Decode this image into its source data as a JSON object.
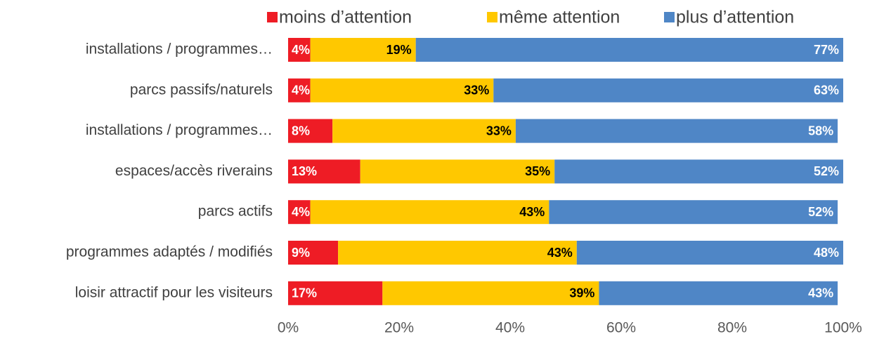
{
  "chart_data": {
    "type": "stacked_barh",
    "categories": [
      "installations / programmes…",
      "parcs passifs/naturels",
      "installations / programmes…",
      "espaces/accès riverains",
      "parcs actifs",
      "programmes adaptés / modifiés",
      "loisir attractif pour les visiteurs"
    ],
    "series": [
      {
        "name": "moins d’attention",
        "color": "#ee1c25",
        "values": [
          4,
          4,
          8,
          13,
          4,
          9,
          17
        ],
        "value_labels": [
          "4%",
          "4%",
          "8%",
          "13%",
          "4%",
          "9%",
          "17%"
        ]
      },
      {
        "name": "même attention",
        "color": "#ffc800",
        "values": [
          19,
          33,
          33,
          35,
          43,
          43,
          39
        ],
        "value_labels": [
          "19%",
          "33%",
          "33%",
          "35%",
          "43%",
          "43%",
          "39%"
        ]
      },
      {
        "name": "plus d’attention",
        "color": "#4f86c6",
        "values": [
          77,
          63,
          58,
          52,
          52,
          48,
          43
        ],
        "value_labels": [
          "77%",
          "63%",
          "58%",
          "52%",
          "52%",
          "48%",
          "43%"
        ]
      }
    ],
    "xlim": [
      0,
      100
    ],
    "xticks": [
      {
        "value": 0,
        "label": "0%"
      },
      {
        "value": 20,
        "label": "20%"
      },
      {
        "value": 40,
        "label": "40%"
      },
      {
        "value": 60,
        "label": "60%"
      },
      {
        "value": 80,
        "label": "80%"
      },
      {
        "value": 100,
        "label": "100%"
      }
    ],
    "legend": "top"
  }
}
